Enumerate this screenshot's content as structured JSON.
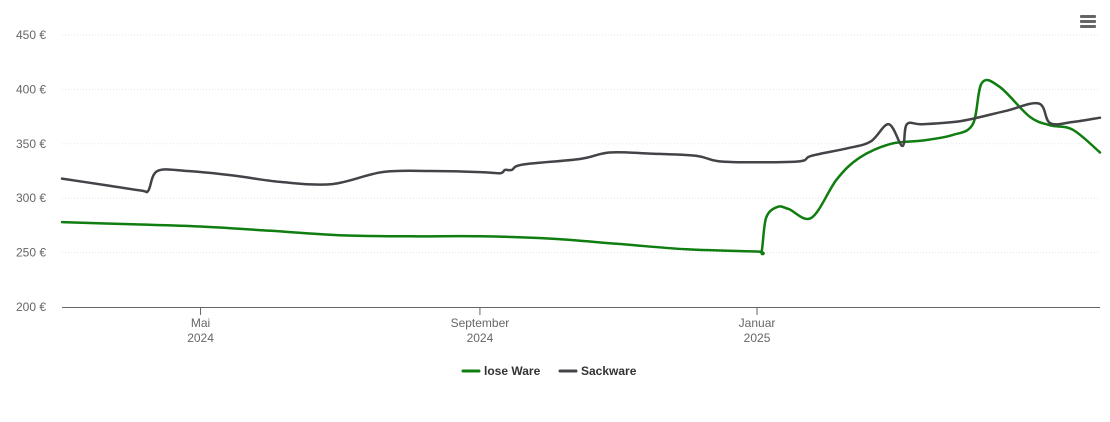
{
  "menu_icon": "hamburger-menu-icon",
  "chart_data": {
    "type": "line",
    "title": "",
    "xlabel": "",
    "ylabel": "",
    "ylim": [
      200,
      450
    ],
    "xlim": [
      "2024-03-01",
      "2025-06-01"
    ],
    "y_ticks": [
      {
        "value": 200,
        "label": "200 €"
      },
      {
        "value": 250,
        "label": "250 €"
      },
      {
        "value": 300,
        "label": "300 €"
      },
      {
        "value": 350,
        "label": "350 €"
      },
      {
        "value": 400,
        "label": "400 €"
      },
      {
        "value": 450,
        "label": "450 €"
      }
    ],
    "x_ticks": [
      {
        "date": "2024-05-01",
        "line1": "Mai",
        "line2": "2024"
      },
      {
        "date": "2024-09-01",
        "line1": "September",
        "line2": "2024"
      },
      {
        "date": "2025-01-01",
        "line1": "Januar",
        "line2": "2025"
      }
    ],
    "grid": true,
    "legend_position": "bottom-center",
    "series": [
      {
        "name": "lose Ware",
        "color": "#0f7d0f",
        "points": [
          [
            "2024-03-01",
            278
          ],
          [
            "2024-04-01",
            276
          ],
          [
            "2024-05-01",
            274
          ],
          [
            "2024-06-01",
            270
          ],
          [
            "2024-07-01",
            266
          ],
          [
            "2024-08-01",
            265
          ],
          [
            "2024-09-01",
            265
          ],
          [
            "2024-10-01",
            263
          ],
          [
            "2024-11-01",
            258
          ],
          [
            "2024-12-01",
            253
          ],
          [
            "2025-01-01",
            251
          ],
          [
            "2025-01-03",
            251
          ],
          [
            "2025-01-05",
            282
          ],
          [
            "2025-01-10",
            292
          ],
          [
            "2025-01-15",
            290
          ],
          [
            "2025-01-25",
            282
          ],
          [
            "2025-02-05",
            317
          ],
          [
            "2025-02-15",
            337
          ],
          [
            "2025-03-01",
            350
          ],
          [
            "2025-03-15",
            353
          ],
          [
            "2025-03-28",
            358
          ],
          [
            "2025-04-06",
            368
          ],
          [
            "2025-04-10",
            406
          ],
          [
            "2025-04-18",
            402
          ],
          [
            "2025-05-01",
            375
          ],
          [
            "2025-05-10",
            367
          ],
          [
            "2025-05-20",
            363
          ],
          [
            "2025-06-01",
            342
          ]
        ]
      },
      {
        "name": "Sackware",
        "color": "#434348",
        "points": [
          [
            "2024-03-01",
            318
          ],
          [
            "2024-03-20",
            312
          ],
          [
            "2024-04-05",
            307
          ],
          [
            "2024-04-08",
            307
          ],
          [
            "2024-04-12",
            325
          ],
          [
            "2024-04-25",
            325
          ],
          [
            "2024-05-15",
            321
          ],
          [
            "2024-06-05",
            315
          ],
          [
            "2024-06-28",
            313
          ],
          [
            "2024-07-20",
            324
          ],
          [
            "2024-08-10",
            325
          ],
          [
            "2024-09-01",
            324
          ],
          [
            "2024-09-10",
            323
          ],
          [
            "2024-09-12",
            326
          ],
          [
            "2024-09-15",
            326
          ],
          [
            "2024-09-20",
            331
          ],
          [
            "2024-10-15",
            336
          ],
          [
            "2024-10-28",
            342
          ],
          [
            "2024-11-15",
            341
          ],
          [
            "2024-12-05",
            339
          ],
          [
            "2024-12-15",
            334
          ],
          [
            "2025-01-01",
            333
          ],
          [
            "2025-01-20",
            334
          ],
          [
            "2025-01-25",
            339
          ],
          [
            "2025-02-10",
            346
          ],
          [
            "2025-02-20",
            352
          ],
          [
            "2025-02-28",
            368
          ],
          [
            "2025-03-06",
            348
          ],
          [
            "2025-03-08",
            368
          ],
          [
            "2025-03-15",
            368
          ],
          [
            "2025-04-01",
            371
          ],
          [
            "2025-04-20",
            380
          ],
          [
            "2025-05-05",
            387
          ],
          [
            "2025-05-10",
            369
          ],
          [
            "2025-05-20",
            370
          ],
          [
            "2025-06-01",
            374
          ]
        ]
      }
    ]
  }
}
